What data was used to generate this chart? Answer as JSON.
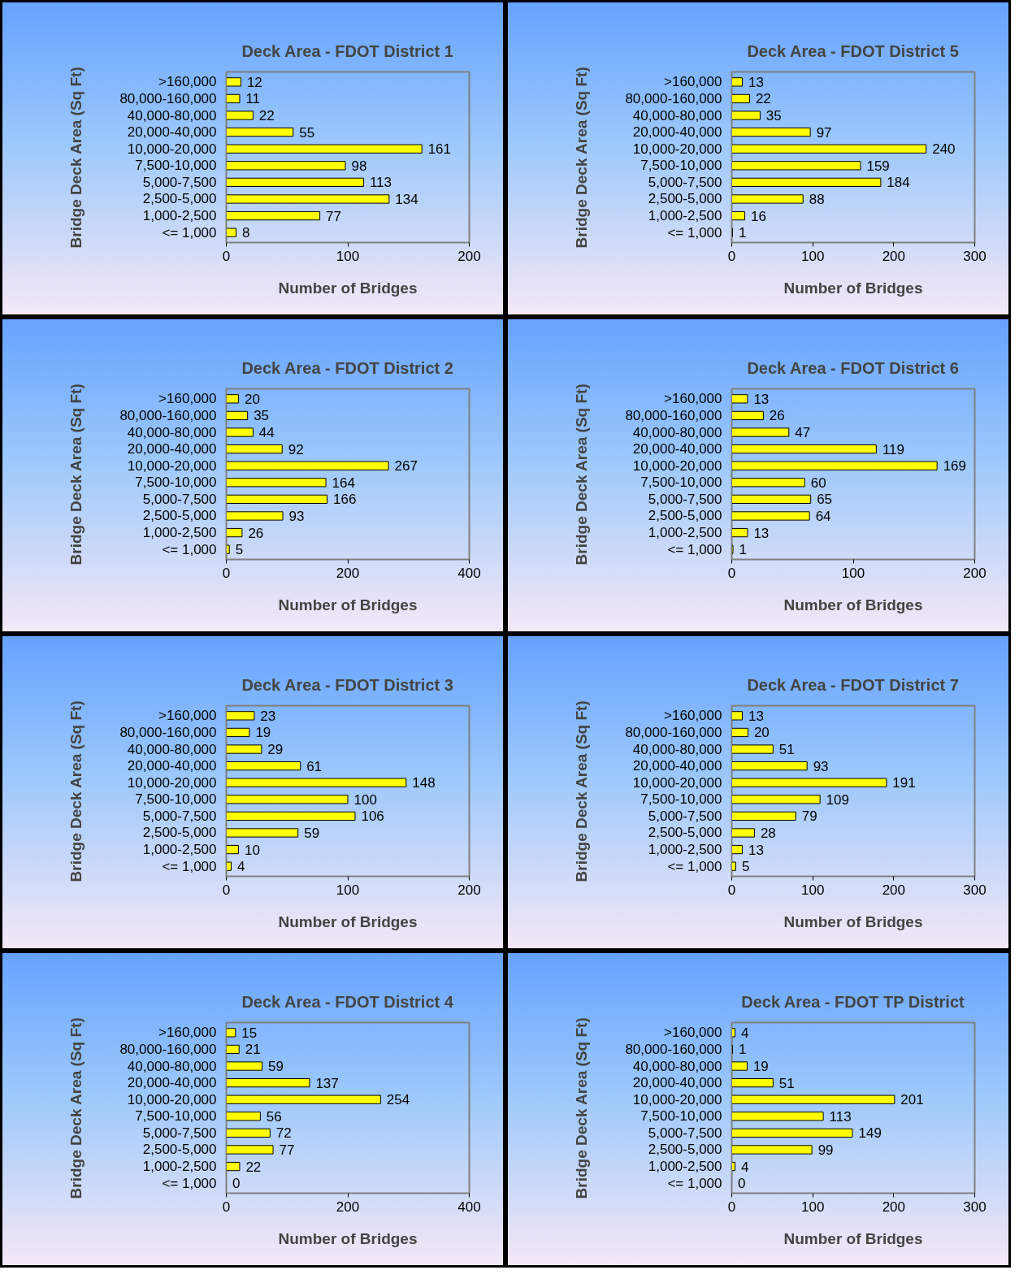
{
  "chart_data": [
    {
      "type": "bar",
      "orientation": "horizontal",
      "title": "Deck Area - FDOT District 1",
      "xlabel": "Number of Bridges",
      "ylabel": "Bridge Deck Area (Sq Ft)",
      "categories": [
        ">160,000",
        "80,000-160,000",
        "40,000-80,000",
        "20,000-40,000",
        "10,000-20,000",
        "7,500-10,000",
        "5,000-7,500",
        "2,500-5,000",
        "1,000-2,500",
        "<= 1,000"
      ],
      "values": [
        12,
        11,
        22,
        55,
        161,
        98,
        113,
        134,
        77,
        8
      ],
      "color": "#ffff00",
      "xlim": [
        0,
        200
      ],
      "xticks": [
        0,
        100,
        200
      ],
      "data_labels": true,
      "grid": false
    },
    {
      "type": "bar",
      "orientation": "horizontal",
      "title": "Deck Area - FDOT District 5",
      "xlabel": "Number of Bridges",
      "ylabel": "Bridge Deck Area (Sq Ft)",
      "categories": [
        ">160,000",
        "80,000-160,000",
        "40,000-80,000",
        "20,000-40,000",
        "10,000-20,000",
        "7,500-10,000",
        "5,000-7,500",
        "2,500-5,000",
        "1,000-2,500",
        "<= 1,000"
      ],
      "values": [
        13,
        22,
        35,
        97,
        240,
        159,
        184,
        88,
        16,
        1
      ],
      "color": "#ffff00",
      "xlim": [
        0,
        300
      ],
      "xticks": [
        0,
        100,
        200,
        300
      ],
      "data_labels": true,
      "grid": false
    },
    {
      "type": "bar",
      "orientation": "horizontal",
      "title": "Deck Area - FDOT District 2",
      "xlabel": "Number of Bridges",
      "ylabel": "Bridge Deck Area (Sq Ft)",
      "categories": [
        ">160,000",
        "80,000-160,000",
        "40,000-80,000",
        "20,000-40,000",
        "10,000-20,000",
        "7,500-10,000",
        "5,000-7,500",
        "2,500-5,000",
        "1,000-2,500",
        "<= 1,000"
      ],
      "values": [
        20,
        35,
        44,
        92,
        267,
        164,
        166,
        93,
        26,
        5
      ],
      "color": "#ffff00",
      "xlim": [
        0,
        400
      ],
      "xticks": [
        0,
        200,
        400
      ],
      "data_labels": true,
      "grid": false
    },
    {
      "type": "bar",
      "orientation": "horizontal",
      "title": "Deck Area - FDOT District 6",
      "xlabel": "Number of Bridges",
      "ylabel": "Bridge Deck Area (Sq Ft)",
      "categories": [
        ">160,000",
        "80,000-160,000",
        "40,000-80,000",
        "20,000-40,000",
        "10,000-20,000",
        "7,500-10,000",
        "5,000-7,500",
        "2,500-5,000",
        "1,000-2,500",
        "<= 1,000"
      ],
      "values": [
        13,
        26,
        47,
        119,
        169,
        60,
        65,
        64,
        13,
        1
      ],
      "color": "#ffff00",
      "xlim": [
        0,
        200
      ],
      "xticks": [
        0,
        100,
        200
      ],
      "data_labels": true,
      "grid": false
    },
    {
      "type": "bar",
      "orientation": "horizontal",
      "title": "Deck Area - FDOT District 3",
      "xlabel": "Number of Bridges",
      "ylabel": "Bridge Deck Area (Sq Ft)",
      "categories": [
        ">160,000",
        "80,000-160,000",
        "40,000-80,000",
        "20,000-40,000",
        "10,000-20,000",
        "7,500-10,000",
        "5,000-7,500",
        "2,500-5,000",
        "1,000-2,500",
        "<= 1,000"
      ],
      "values": [
        23,
        19,
        29,
        61,
        148,
        100,
        106,
        59,
        10,
        4
      ],
      "color": "#ffff00",
      "xlim": [
        0,
        200
      ],
      "xticks": [
        0,
        100,
        200
      ],
      "data_labels": true,
      "grid": false
    },
    {
      "type": "bar",
      "orientation": "horizontal",
      "title": "Deck Area - FDOT District 7",
      "xlabel": "Number of Bridges",
      "ylabel": "Bridge Deck Area (Sq Ft)",
      "categories": [
        ">160,000",
        "80,000-160,000",
        "40,000-80,000",
        "20,000-40,000",
        "10,000-20,000",
        "7,500-10,000",
        "5,000-7,500",
        "2,500-5,000",
        "1,000-2,500",
        "<= 1,000"
      ],
      "values": [
        13,
        20,
        51,
        93,
        191,
        109,
        79,
        28,
        13,
        5
      ],
      "color": "#ffff00",
      "xlim": [
        0,
        300
      ],
      "xticks": [
        0,
        100,
        200,
        300
      ],
      "data_labels": true,
      "grid": false
    },
    {
      "type": "bar",
      "orientation": "horizontal",
      "title": "Deck Area - FDOT District 4",
      "xlabel": "Number of Bridges",
      "ylabel": "Bridge Deck Area (Sq Ft)",
      "categories": [
        ">160,000",
        "80,000-160,000",
        "40,000-80,000",
        "20,000-40,000",
        "10,000-20,000",
        "7,500-10,000",
        "5,000-7,500",
        "2,500-5,000",
        "1,000-2,500",
        "<= 1,000"
      ],
      "values": [
        15,
        21,
        59,
        137,
        254,
        56,
        72,
        77,
        22,
        0
      ],
      "color": "#ffff00",
      "xlim": [
        0,
        400
      ],
      "xticks": [
        0,
        200,
        400
      ],
      "data_labels": true,
      "grid": false
    },
    {
      "type": "bar",
      "orientation": "horizontal",
      "title": "Deck Area - FDOT TP District",
      "xlabel": "Number of Bridges",
      "ylabel": "Bridge Deck Area (Sq Ft)",
      "categories": [
        ">160,000",
        "80,000-160,000",
        "40,000-80,000",
        "20,000-40,000",
        "10,000-20,000",
        "7,500-10,000",
        "5,000-7,500",
        "2,500-5,000",
        "1,000-2,500",
        "<= 1,000"
      ],
      "values": [
        4,
        1,
        19,
        51,
        201,
        113,
        149,
        99,
        4,
        0
      ],
      "color": "#ffff00",
      "xlim": [
        0,
        300
      ],
      "xticks": [
        0,
        100,
        200,
        300
      ],
      "data_labels": true,
      "grid": false
    }
  ]
}
